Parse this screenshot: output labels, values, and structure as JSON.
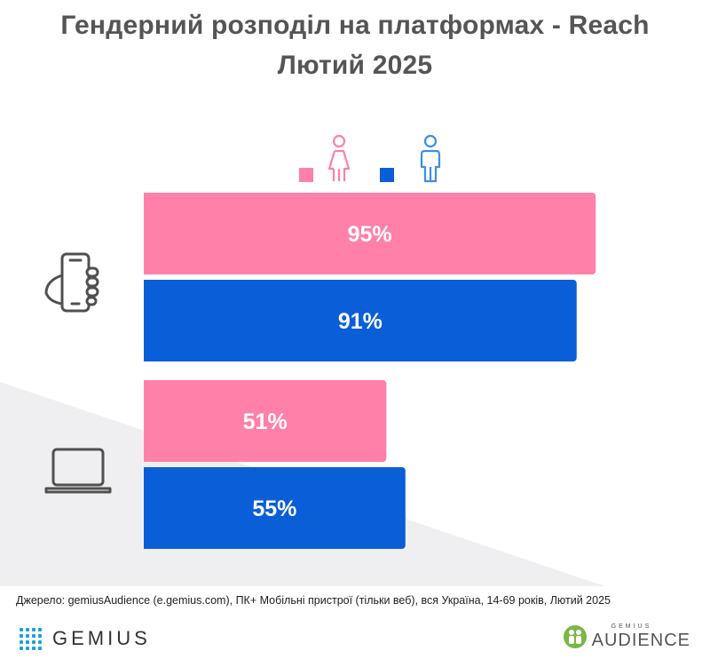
{
  "colors": {
    "female": "#ff80a8",
    "male": "#0a5ed7",
    "icon": "#505050"
  },
  "chart_data": {
    "type": "bar",
    "orientation": "horizontal",
    "title": "Гендерний розподіл на платформах - Reach",
    "subtitle": "Лютий 2025",
    "categories": [
      "mobile-icon",
      "laptop-icon"
    ],
    "series": [
      {
        "legend_icon": "female-icon",
        "color": "#ff80a8",
        "values": [
          95,
          51
        ],
        "labels": [
          "95%",
          "51%"
        ]
      },
      {
        "legend_icon": "male-icon",
        "color": "#0a5ed7",
        "values": [
          91,
          55
        ],
        "labels": [
          "91%",
          "55%"
        ]
      }
    ],
    "xlim": [
      0,
      100
    ],
    "unit": "%",
    "grid": false,
    "legend_position": "top"
  },
  "source": "Джерело: gemiusAudience (e.gemius.com), ПК+ Мобільні пристрої (тільки веб), вся Україна, 14-69 років, Лютий 2025",
  "footer": {
    "left_logo": "GEMIUS",
    "right_logo_small": "GEMIUS",
    "right_logo": "AUDIENCE"
  }
}
